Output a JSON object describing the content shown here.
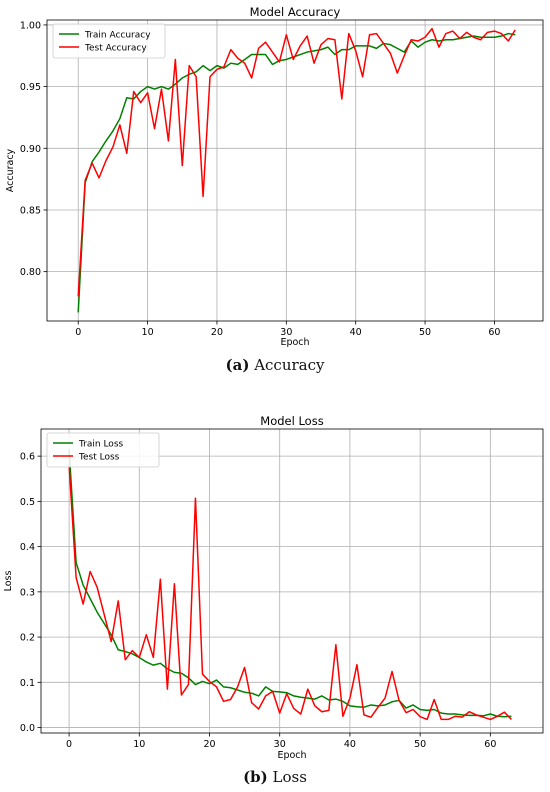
{
  "figure": {
    "captions": [
      {
        "letter": "(a)",
        "text": "Accuracy"
      },
      {
        "letter": "(b)",
        "text": "Loss"
      }
    ]
  },
  "chart_data": [
    {
      "type": "line",
      "title": "Model Accuracy",
      "xlabel": "Epoch",
      "ylabel": "Accuracy",
      "xlim": [
        -4.5,
        67
      ],
      "ylim": [
        0.76,
        1.004
      ],
      "xticks": [
        0,
        10,
        20,
        30,
        40,
        50,
        60
      ],
      "yticks": [
        0.8,
        0.85,
        0.9,
        0.95,
        1.0
      ],
      "ytick_labels": [
        "0.80",
        "0.85",
        "0.90",
        "0.95",
        "1.00"
      ],
      "grid": true,
      "legend_position": "top-left",
      "x": [
        0,
        1,
        2,
        3,
        4,
        5,
        6,
        7,
        8,
        9,
        10,
        11,
        12,
        13,
        14,
        15,
        16,
        17,
        18,
        19,
        20,
        21,
        22,
        23,
        24,
        25,
        26,
        27,
        28,
        29,
        30,
        31,
        32,
        33,
        34,
        35,
        36,
        37,
        38,
        39,
        40,
        41,
        42,
        43,
        44,
        45,
        46,
        47,
        48,
        49,
        50,
        51,
        52,
        53,
        54,
        55,
        56,
        57,
        58,
        59,
        60,
        61,
        62,
        63
      ],
      "series": [
        {
          "name": "Train Accuracy",
          "color": "#008000",
          "values": [
            0.767,
            0.872,
            0.889,
            0.897,
            0.906,
            0.914,
            0.924,
            0.941,
            0.94,
            0.946,
            0.95,
            0.948,
            0.95,
            0.948,
            0.952,
            0.957,
            0.96,
            0.962,
            0.967,
            0.963,
            0.967,
            0.965,
            0.969,
            0.968,
            0.972,
            0.976,
            0.976,
            0.976,
            0.968,
            0.971,
            0.972,
            0.974,
            0.976,
            0.978,
            0.979,
            0.98,
            0.982,
            0.976,
            0.98,
            0.98,
            0.983,
            0.983,
            0.983,
            0.981,
            0.985,
            0.984,
            0.981,
            0.978,
            0.987,
            0.982,
            0.986,
            0.988,
            0.987,
            0.988,
            0.988,
            0.989,
            0.99,
            0.991,
            0.99,
            0.99,
            0.99,
            0.991,
            0.993,
            0.992
          ]
        },
        {
          "name": "Test Accuracy",
          "color": "#ff0000",
          "values": [
            0.78,
            0.874,
            0.888,
            0.876,
            0.89,
            0.901,
            0.919,
            0.896,
            0.946,
            0.937,
            0.945,
            0.916,
            0.948,
            0.906,
            0.972,
            0.886,
            0.967,
            0.958,
            0.861,
            0.958,
            0.964,
            0.966,
            0.98,
            0.973,
            0.969,
            0.957,
            0.981,
            0.986,
            0.978,
            0.97,
            0.992,
            0.972,
            0.983,
            0.991,
            0.969,
            0.984,
            0.989,
            0.988,
            0.94,
            0.993,
            0.979,
            0.958,
            0.992,
            0.993,
            0.985,
            0.977,
            0.961,
            0.975,
            0.988,
            0.987,
            0.99,
            0.997,
            0.982,
            0.993,
            0.995,
            0.989,
            0.994,
            0.99,
            0.988,
            0.994,
            0.995,
            0.993,
            0.987,
            0.996
          ]
        }
      ]
    },
    {
      "type": "line",
      "title": "Model Loss",
      "xlabel": "Epoch",
      "ylabel": "Loss",
      "xlim": [
        -4,
        67.5
      ],
      "ylim": [
        -0.012,
        0.66
      ],
      "xticks": [
        0,
        10,
        20,
        30,
        40,
        50,
        60
      ],
      "yticks": [
        0.0,
        0.1,
        0.2,
        0.3,
        0.4,
        0.5,
        0.6
      ],
      "ytick_labels": [
        "0.0",
        "0.1",
        "0.2",
        "0.3",
        "0.4",
        "0.5",
        "0.6"
      ],
      "grid": true,
      "legend_position": "top-left",
      "x": [
        0,
        1,
        2,
        3,
        4,
        5,
        6,
        7,
        8,
        9,
        10,
        11,
        12,
        13,
        14,
        15,
        16,
        17,
        18,
        19,
        20,
        21,
        22,
        23,
        24,
        25,
        26,
        27,
        28,
        29,
        30,
        31,
        32,
        33,
        34,
        35,
        36,
        37,
        38,
        39,
        40,
        41,
        42,
        43,
        44,
        45,
        46,
        47,
        48,
        49,
        50,
        51,
        52,
        53,
        54,
        55,
        56,
        57,
        58,
        59,
        60,
        61,
        62,
        63
      ],
      "series": [
        {
          "name": "Train Loss",
          "color": "#008000",
          "values": [
            0.615,
            0.365,
            0.315,
            0.285,
            0.255,
            0.23,
            0.205,
            0.172,
            0.168,
            0.163,
            0.155,
            0.145,
            0.138,
            0.142,
            0.13,
            0.122,
            0.12,
            0.11,
            0.095,
            0.102,
            0.097,
            0.105,
            0.09,
            0.088,
            0.083,
            0.078,
            0.076,
            0.07,
            0.09,
            0.08,
            0.079,
            0.077,
            0.07,
            0.067,
            0.065,
            0.063,
            0.07,
            0.061,
            0.063,
            0.058,
            0.048,
            0.046,
            0.045,
            0.05,
            0.048,
            0.05,
            0.057,
            0.06,
            0.043,
            0.05,
            0.04,
            0.038,
            0.04,
            0.032,
            0.03,
            0.03,
            0.028,
            0.027,
            0.027,
            0.026,
            0.03,
            0.025,
            0.024,
            0.025
          ]
        },
        {
          "name": "Test Loss",
          "color": "#ff0000",
          "values": [
            0.58,
            0.332,
            0.273,
            0.345,
            0.31,
            0.25,
            0.19,
            0.28,
            0.15,
            0.17,
            0.155,
            0.205,
            0.155,
            0.328,
            0.085,
            0.318,
            0.072,
            0.095,
            0.507,
            0.118,
            0.102,
            0.09,
            0.058,
            0.062,
            0.09,
            0.133,
            0.055,
            0.041,
            0.07,
            0.08,
            0.032,
            0.075,
            0.042,
            0.03,
            0.085,
            0.048,
            0.035,
            0.038,
            0.183,
            0.025,
            0.065,
            0.139,
            0.028,
            0.023,
            0.045,
            0.065,
            0.124,
            0.06,
            0.033,
            0.04,
            0.024,
            0.018,
            0.062,
            0.018,
            0.018,
            0.025,
            0.023,
            0.035,
            0.028,
            0.023,
            0.018,
            0.025,
            0.034,
            0.018
          ]
        }
      ]
    }
  ]
}
